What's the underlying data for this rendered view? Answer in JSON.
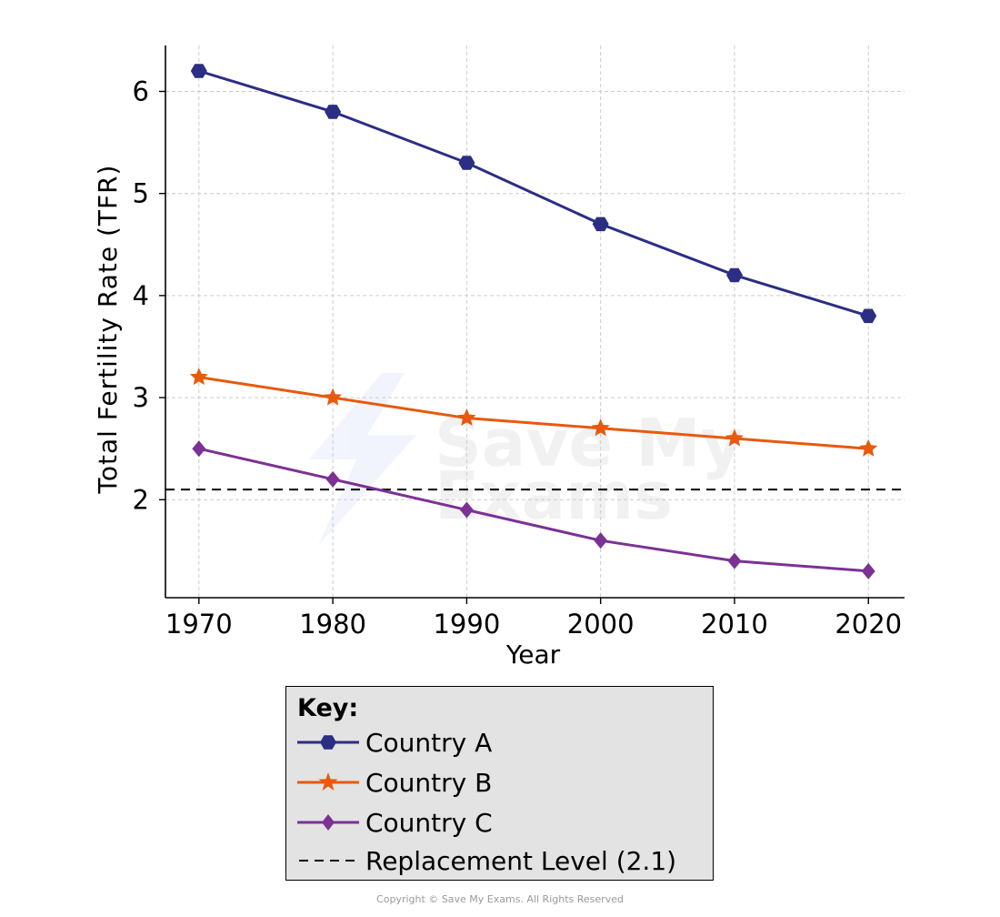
{
  "chart_data": {
    "type": "line",
    "title": "",
    "xlabel": "Year",
    "ylabel": "Total Fertility Rate (TFR)",
    "x": [
      1970,
      1980,
      1990,
      2000,
      2010,
      2020
    ],
    "x_ticks": [
      "1970",
      "1980",
      "1990",
      "2000",
      "2010",
      "2020"
    ],
    "y_ticks": [
      "2",
      "3",
      "4",
      "5",
      "6"
    ],
    "xlim": [
      1967.5,
      2022.7
    ],
    "ylim": [
      1.04,
      6.45
    ],
    "grid": true,
    "grid_style": "dashed",
    "legend_placement": "below",
    "series": [
      {
        "name": "Country A",
        "values": [
          6.2,
          5.8,
          5.3,
          4.7,
          4.2,
          3.8
        ],
        "color": "#2b2e83",
        "marker": "hexagon"
      },
      {
        "name": "Country B",
        "values": [
          3.2,
          3.0,
          2.8,
          2.7,
          2.6,
          2.5
        ],
        "color": "#e8590c",
        "marker": "star"
      },
      {
        "name": "Country C",
        "values": [
          2.5,
          2.2,
          1.9,
          1.6,
          1.4,
          1.3
        ],
        "color": "#7b3294",
        "marker": "diamond"
      }
    ],
    "reference_lines": [
      {
        "name": "Replacement Level (2.1)",
        "y": 2.1,
        "color": "#000000",
        "style": "dashed"
      }
    ]
  },
  "legend": {
    "title": "Key:",
    "items": [
      {
        "label": "Country A",
        "color": "#2b2e83",
        "marker": "hexagon"
      },
      {
        "label": "Country B",
        "color": "#e8590c",
        "marker": "star"
      },
      {
        "label": "Country C",
        "color": "#7b3294",
        "marker": "diamond"
      },
      {
        "label": "Replacement Level (2.1)",
        "color": "#000000",
        "marker": "dashed-line"
      }
    ]
  },
  "watermark": {
    "text_line1": "Save My",
    "text_line2": "Exams"
  },
  "footer": {
    "copyright": "Copyright © Save My Exams. All Rights Reserved"
  }
}
